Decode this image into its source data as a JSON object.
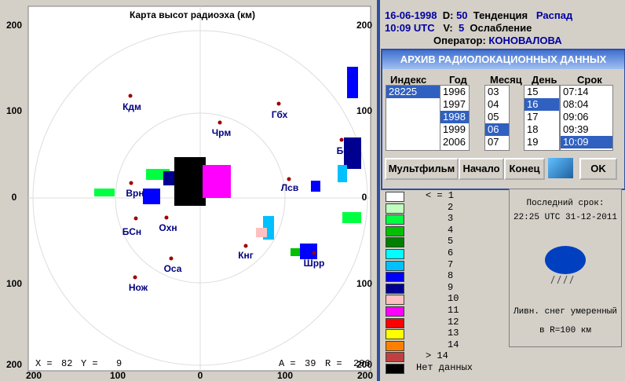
{
  "map": {
    "title": "Карта высот радиоэха (км)",
    "axis_left": [
      "200",
      "100",
      "0",
      "100",
      "200"
    ],
    "axis_right": [
      "200",
      "100",
      "0",
      "100",
      "200"
    ],
    "axis_bottom": [
      "200",
      "100",
      "0",
      "100",
      "200"
    ],
    "stations": [
      "Кдм",
      "Гбх",
      "Чрм",
      "Врн",
      "Лсв",
      "Бср",
      "БСн",
      "Охн",
      "Кнг",
      "Шрр",
      "Оса",
      "Нож"
    ],
    "cursor_left": [
      "X =",
      "82",
      "Y =",
      "9"
    ],
    "cursor_right": [
      "A =",
      "39",
      "R =",
      "206"
    ]
  },
  "status": {
    "date": "16-06-1998",
    "d_label": "D:",
    "d": "50",
    "trend_label": "Тенденция",
    "trend": "Распад",
    "time": "10:09 UTC",
    "v_label": "V:",
    "v": "5",
    "weakening": "Ослабление",
    "operator_label": "Оператор:",
    "operator": "КОНОВАЛОВА"
  },
  "archive": {
    "title": "АРХИВ  РАДИОЛОКАЦИОННЫХ  ДАННЫХ",
    "columns": [
      {
        "header": "Индекс",
        "items": [
          "28225"
        ],
        "selected": 0
      },
      {
        "header": "Год",
        "items": [
          "1996",
          "1997",
          "1998",
          "1999",
          "2006"
        ],
        "selected": 2
      },
      {
        "header": "Месяц",
        "items": [
          "03",
          "04",
          "05",
          "06",
          "07"
        ],
        "selected": 3
      },
      {
        "header": "День",
        "items": [
          "15",
          "16",
          "17",
          "18",
          "19"
        ],
        "selected": 1
      },
      {
        "header": "Срок",
        "items": [
          "07:14",
          "08:04",
          "09:06",
          "09:39",
          "10:09"
        ],
        "selected": 4
      }
    ],
    "buttons": [
      "Мультфильм",
      "Начало",
      "Конец",
      "OK"
    ]
  },
  "legend": [
    {
      "label": "< = 1",
      "color": "#ffffff"
    },
    {
      "label": "2",
      "color": "#c0ffc0"
    },
    {
      "label": "3",
      "color": "#00ff40"
    },
    {
      "label": "4",
      "color": "#00c000"
    },
    {
      "label": "5",
      "color": "#008000"
    },
    {
      "label": "6",
      "color": "#00ffff"
    },
    {
      "label": "7",
      "color": "#00c0ff"
    },
    {
      "label": "8",
      "color": "#0000ff"
    },
    {
      "label": "9",
      "color": "#000090"
    },
    {
      "label": "10",
      "color": "#ffc0c0"
    },
    {
      "label": "11",
      "color": "#ff00ff"
    },
    {
      "label": "12",
      "color": "#ff0000"
    },
    {
      "label": "13",
      "color": "#ffff00"
    },
    {
      "label": "14",
      "color": "#ff8000"
    },
    {
      "label": "> 14",
      "color": "#c04040"
    },
    {
      "label": "Нет данных",
      "color": "#000000"
    }
  ],
  "info": {
    "last_label": "Последний срок:",
    "last": "22:25 UTC 31-12-2011",
    "weather": "Ливн. снег умеренный",
    "range": "в R=100 км"
  }
}
